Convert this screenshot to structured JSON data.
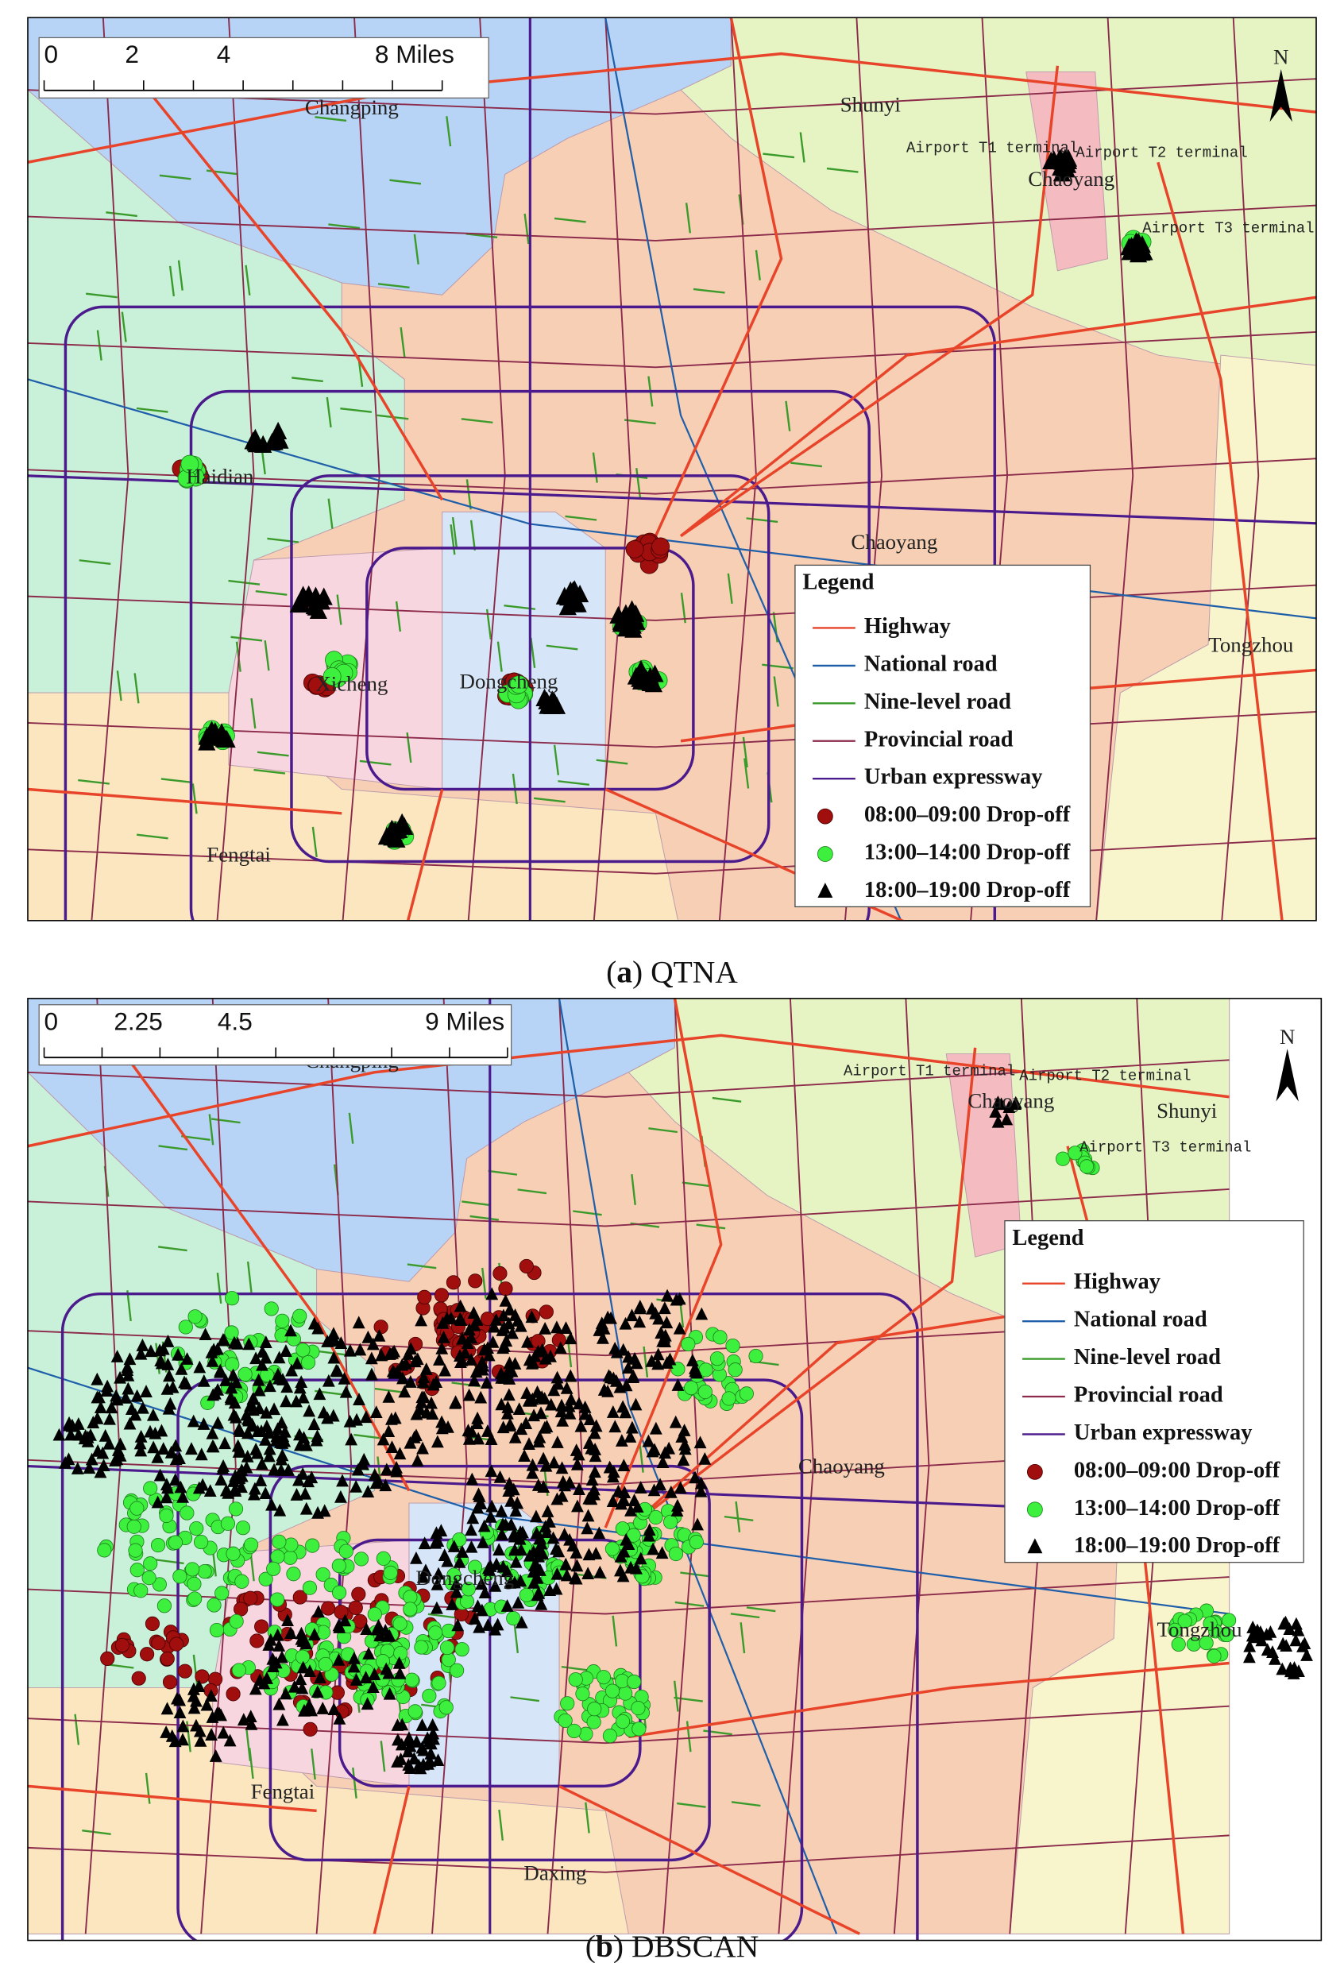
{
  "panels": [
    {
      "caption": [
        "(",
        "a",
        ") QTNA"
      ],
      "scale_bar": [
        "0",
        "2",
        "4",
        "8 Miles"
      ],
      "north": "N",
      "places": [
        "Changping",
        "Shunyi",
        "Airport T1 terminal",
        "Airport T2 terminal",
        "Chaoyang",
        "Airport T3 terminal",
        "Haidian",
        "Chaoyang",
        "Tongzhou",
        "Xicheng",
        "Dongcheng",
        "Fengtai"
      ],
      "legend": {
        "title": "Legend",
        "items": [
          "Highway",
          "National road",
          "Nine-level road",
          "Provincial road",
          "Urban expressway",
          "08:00–09:00 Drop-off",
          "13:00–14:00 Drop-off",
          "18:00–19:00 Drop-off"
        ]
      }
    },
    {
      "caption": [
        "(",
        "b",
        ") DBSCAN"
      ],
      "scale_bar": [
        "0",
        "2.25",
        "4.5",
        "9 Miles"
      ],
      "north": "N",
      "places": [
        "Changping",
        "Airport T1 terminal",
        "Airport T2 terminal",
        "Chaoyang",
        "Shunyi",
        "Airport T3 terminal",
        "Chaoyang",
        "Tongzhou",
        "Dongcheng",
        "Fengtai",
        "Daxing"
      ],
      "legend": {
        "title": "Legend",
        "items": [
          "Highway",
          "National road",
          "Nine-level road",
          "Provincial road",
          "Urban expressway",
          "08:00–09:00 Drop-off",
          "13:00–14:00 Drop-off",
          "18:00–19:00 Drop-off"
        ]
      }
    }
  ]
}
